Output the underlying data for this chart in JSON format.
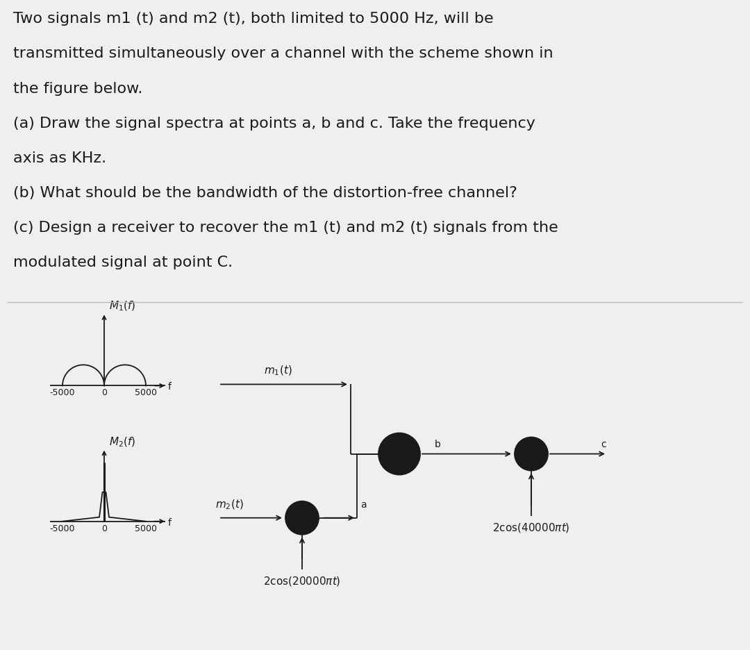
{
  "background_color": "#efefef",
  "diagram_bg": "#ffffff",
  "line_color": "#1a1a1a",
  "text_color": "#1a1a1a",
  "text_block": [
    "Two signals m1 (t) and m2 (t), both limited to 5000 Hz, will be",
    "transmitted simultaneously over a channel with the scheme shown in",
    "the figure below.",
    "(a) Draw the signal spectra at points a, b and c. Take the frequency",
    "axis as KHz.",
    "(b) What should be the bandwidth of the distortion-free channel?",
    "(c) Design a receiver to recover the m1 (t) and m2 (t) signals from the",
    "modulated signal at point C."
  ],
  "font_size_text": 16,
  "font_size_label": 11,
  "font_size_small": 9
}
